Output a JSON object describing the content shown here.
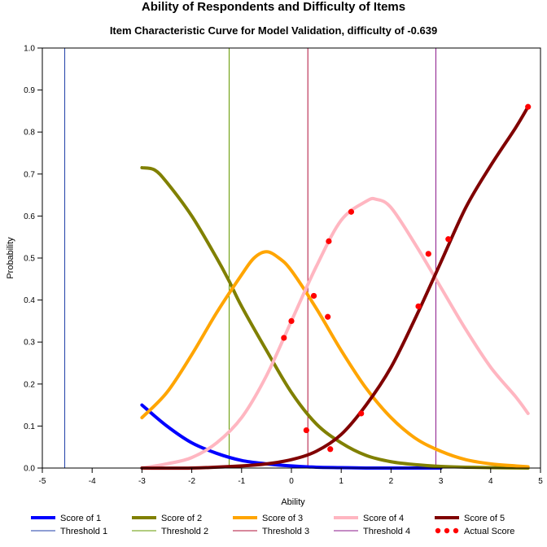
{
  "chart_data": {
    "type": "line",
    "title": "Ability of Respondents and Difficulty of Items",
    "subtitle": "Item Characteristic Curve for Model Validation, difficulty of -0.639",
    "xlabel": "Ability",
    "ylabel": "Probability",
    "xlim": [
      -5,
      5
    ],
    "ylim": [
      0,
      1
    ],
    "xticks": [
      -5,
      -4,
      -3,
      -2,
      -1,
      0,
      1,
      2,
      3,
      4,
      5
    ],
    "yticks": [
      0.0,
      0.1,
      0.2,
      0.3,
      0.4,
      0.5,
      0.6,
      0.7,
      0.8,
      0.9,
      1.0
    ],
    "ytick_labels": [
      "0.0",
      "0.1",
      "0.2",
      "0.3",
      "0.4",
      "0.5",
      "0.6",
      "0.7",
      "0.8",
      "0.9",
      "1.0"
    ],
    "legend_position": "bottom",
    "series": [
      {
        "name": "Score of 1",
        "color": "#0000ff",
        "x": [
          -3.0,
          -2.5,
          -2.0,
          -1.5,
          -1.0,
          -0.5,
          0.0,
          0.5,
          1.0,
          1.5,
          2.0,
          2.5,
          3.0
        ],
        "y": [
          0.15,
          0.1,
          0.06,
          0.035,
          0.018,
          0.01,
          0.005,
          0.002,
          0.001,
          0.0,
          0.0,
          0.0,
          0.0
        ]
      },
      {
        "name": "Score of 2",
        "color": "#808000",
        "x": [
          -3.0,
          -2.75,
          -2.5,
          -2.0,
          -1.5,
          -1.25,
          -1.0,
          -0.5,
          0.0,
          0.5,
          1.0,
          1.5,
          2.0,
          2.5,
          3.0,
          3.5,
          4.0,
          4.75
        ],
        "y": [
          0.715,
          0.71,
          0.68,
          0.6,
          0.5,
          0.445,
          0.385,
          0.28,
          0.18,
          0.105,
          0.06,
          0.03,
          0.015,
          0.008,
          0.004,
          0.002,
          0.001,
          0.0
        ]
      },
      {
        "name": "Score of 3",
        "color": "#ffa500",
        "x": [
          -3.0,
          -2.5,
          -2.0,
          -1.5,
          -1.0,
          -0.75,
          -0.5,
          -0.25,
          0.0,
          0.5,
          1.0,
          1.5,
          2.0,
          2.5,
          3.0,
          3.5,
          4.0,
          4.5,
          4.75
        ],
        "y": [
          0.12,
          0.18,
          0.27,
          0.37,
          0.46,
          0.5,
          0.515,
          0.5,
          0.47,
          0.38,
          0.28,
          0.19,
          0.12,
          0.07,
          0.04,
          0.02,
          0.01,
          0.005,
          0.003
        ]
      },
      {
        "name": "Score of 4",
        "color": "#ffb6c1",
        "x": [
          -3.0,
          -2.5,
          -2.0,
          -1.5,
          -1.0,
          -0.5,
          0.0,
          0.5,
          1.0,
          1.5,
          1.7,
          2.0,
          2.5,
          3.0,
          3.5,
          4.0,
          4.5,
          4.75
        ],
        "y": [
          0.0,
          0.01,
          0.025,
          0.06,
          0.12,
          0.22,
          0.35,
          0.48,
          0.59,
          0.635,
          0.64,
          0.62,
          0.53,
          0.43,
          0.33,
          0.24,
          0.17,
          0.13
        ]
      },
      {
        "name": "Score of 5",
        "color": "#800000",
        "x": [
          -3.0,
          -2.0,
          -1.0,
          -0.5,
          0.0,
          0.5,
          1.0,
          1.5,
          2.0,
          2.5,
          3.0,
          3.5,
          4.0,
          4.5,
          4.75
        ],
        "y": [
          0.0,
          0.0,
          0.005,
          0.01,
          0.02,
          0.04,
          0.08,
          0.15,
          0.24,
          0.36,
          0.49,
          0.62,
          0.72,
          0.81,
          0.86
        ]
      }
    ],
    "thresholds": [
      {
        "name": "Threshold 1",
        "x": -4.55,
        "color": "#1f3fa8"
      },
      {
        "name": "Threshold 2",
        "x": -1.25,
        "color": "#669900"
      },
      {
        "name": "Threshold 3",
        "x": 0.33,
        "color": "#b0103a"
      },
      {
        "name": "Threshold 4",
        "x": 2.9,
        "color": "#8b1a8b"
      }
    ],
    "actual_scores": {
      "name": "Actual Score",
      "color": "#ff0000",
      "points": [
        {
          "x": -0.15,
          "y": 0.31
        },
        {
          "x": 0.0,
          "y": 0.35
        },
        {
          "x": 0.3,
          "y": 0.09
        },
        {
          "x": 0.45,
          "y": 0.41
        },
        {
          "x": 0.73,
          "y": 0.36
        },
        {
          "x": 0.75,
          "y": 0.54
        },
        {
          "x": 0.78,
          "y": 0.045
        },
        {
          "x": 1.2,
          "y": 0.61
        },
        {
          "x": 1.4,
          "y": 0.13
        },
        {
          "x": 2.55,
          "y": 0.385
        },
        {
          "x": 2.75,
          "y": 0.51
        },
        {
          "x": 3.15,
          "y": 0.545
        },
        {
          "x": 4.75,
          "y": 0.86
        }
      ]
    }
  }
}
